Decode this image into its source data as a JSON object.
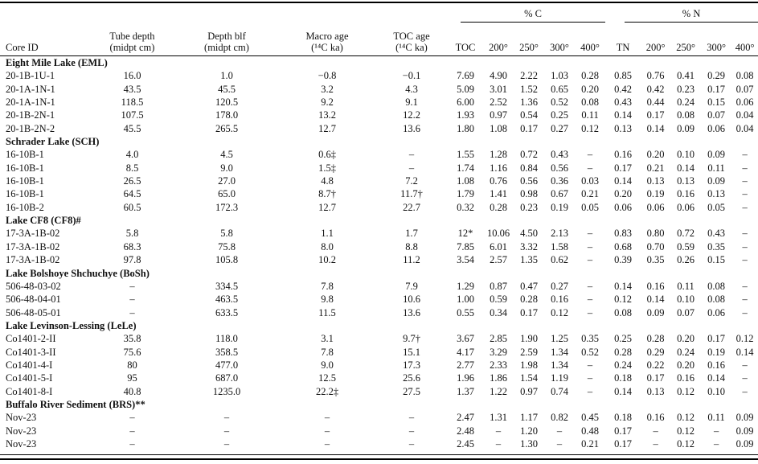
{
  "table": {
    "headers": {
      "core_id": "Core ID",
      "tube_depth": [
        "Tube depth",
        "(midpt cm)"
      ],
      "depth_blf": [
        "Depth blf",
        "(midpt cm)"
      ],
      "macro_age": [
        "Macro age",
        "(¹⁴C ka)"
      ],
      "toc_age": [
        "TOC age",
        "(¹⁴C ka)"
      ],
      "c_group": "% C",
      "n_group": "% N",
      "c_cols": [
        "TOC",
        "200°",
        "250°",
        "300°",
        "400°"
      ],
      "n_cols": [
        "TN",
        "200°",
        "250°",
        "300°",
        "400°"
      ]
    },
    "sections": [
      {
        "title": "Eight Mile Lake (EML)",
        "rows": [
          [
            "20-1B-1U-1",
            "16.0",
            "1.0",
            "−0.8",
            "−0.1",
            "7.69",
            "4.90",
            "2.22",
            "1.03",
            "0.28",
            "0.85",
            "0.76",
            "0.41",
            "0.29",
            "0.08"
          ],
          [
            "20-1A-1N-1",
            "43.5",
            "45.5",
            "3.2",
            "4.3",
            "5.09",
            "3.01",
            "1.52",
            "0.65",
            "0.20",
            "0.42",
            "0.42",
            "0.23",
            "0.17",
            "0.07"
          ],
          [
            "20-1A-1N-1",
            "118.5",
            "120.5",
            "9.2",
            "9.1",
            "6.00",
            "2.52",
            "1.36",
            "0.52",
            "0.08",
            "0.43",
            "0.44",
            "0.24",
            "0.15",
            "0.06"
          ],
          [
            "20-1B-2N-1",
            "107.5",
            "178.0",
            "13.2",
            "12.2",
            "1.93",
            "0.97",
            "0.54",
            "0.25",
            "0.11",
            "0.14",
            "0.17",
            "0.08",
            "0.07",
            "0.04"
          ],
          [
            "20-1B-2N-2",
            "45.5",
            "265.5",
            "12.7",
            "13.6",
            "1.80",
            "1.08",
            "0.17",
            "0.27",
            "0.12",
            "0.13",
            "0.14",
            "0.09",
            "0.06",
            "0.04"
          ]
        ]
      },
      {
        "title": "Schrader Lake (SCH)",
        "rows": [
          [
            "16-10B-1",
            "4.0",
            "4.5",
            "0.6‡",
            "–",
            "1.55",
            "1.28",
            "0.72",
            "0.43",
            "–",
            "0.16",
            "0.20",
            "0.10",
            "0.09",
            "–"
          ],
          [
            "16-10B-1",
            "8.5",
            "9.0",
            "1.5‡",
            "–",
            "1.74",
            "1.16",
            "0.84",
            "0.56",
            "–",
            "0.17",
            "0.21",
            "0.14",
            "0.11",
            "–"
          ],
          [
            "16-10B-1",
            "26.5",
            "27.0",
            "4.8",
            "7.2",
            "1.08",
            "0.76",
            "0.56",
            "0.36",
            "0.03",
            "0.14",
            "0.13",
            "0.13",
            "0.09",
            "–"
          ],
          [
            "16-10B-1",
            "64.5",
            "65.0",
            "8.7†",
            "11.7†",
            "1.79",
            "1.41",
            "0.98",
            "0.67",
            "0.21",
            "0.20",
            "0.19",
            "0.16",
            "0.13",
            "–"
          ],
          [
            "16-10B-2",
            "60.5",
            "172.3",
            "12.7",
            "22.7",
            "0.32",
            "0.28",
            "0.23",
            "0.19",
            "0.05",
            "0.06",
            "0.06",
            "0.06",
            "0.05",
            "–"
          ]
        ]
      },
      {
        "title": "Lake CF8 (CF8)#",
        "rows": [
          [
            "17-3A-1B-02",
            "5.8",
            "5.8",
            "1.1",
            "1.7",
            "12*",
            "10.06",
            "4.50",
            "2.13",
            "–",
            "0.83",
            "0.80",
            "0.72",
            "0.43",
            "–"
          ],
          [
            "17-3A-1B-02",
            "68.3",
            "75.8",
            "8.0",
            "8.8",
            "7.85",
            "6.01",
            "3.32",
            "1.58",
            "–",
            "0.68",
            "0.70",
            "0.59",
            "0.35",
            "–"
          ],
          [
            "17-3A-1B-02",
            "97.8",
            "105.8",
            "10.2",
            "11.2",
            "3.54",
            "2.57",
            "1.35",
            "0.62",
            "–",
            "0.39",
            "0.35",
            "0.26",
            "0.15",
            "–"
          ]
        ]
      },
      {
        "title": "Lake Bolshoye Shchuchye (BoSh)",
        "rows": [
          [
            "506-48-03-02",
            "–",
            "334.5",
            "7.8",
            "7.9",
            "1.29",
            "0.87",
            "0.47",
            "0.27",
            "–",
            "0.14",
            "0.16",
            "0.11",
            "0.08",
            "–"
          ],
          [
            "506-48-04-01",
            "–",
            "463.5",
            "9.8",
            "10.6",
            "1.00",
            "0.59",
            "0.28",
            "0.16",
            "–",
            "0.12",
            "0.14",
            "0.10",
            "0.08",
            "–"
          ],
          [
            "506-48-05-01",
            "–",
            "633.5",
            "11.5",
            "13.6",
            "0.55",
            "0.34",
            "0.17",
            "0.12",
            "–",
            "0.08",
            "0.09",
            "0.07",
            "0.06",
            "–"
          ]
        ]
      },
      {
        "title": "Lake Levinson-Lessing (LeLe)",
        "rows": [
          [
            "Co1401-2-II",
            "35.8",
            "118.0",
            "3.1",
            "9.7†",
            "3.67",
            "2.85",
            "1.90",
            "1.25",
            "0.35",
            "0.25",
            "0.28",
            "0.20",
            "0.17",
            "0.12"
          ],
          [
            "Co1401-3-II",
            "75.6",
            "358.5",
            "7.8",
            "15.1",
            "4.17",
            "3.29",
            "2.59",
            "1.34",
            "0.52",
            "0.28",
            "0.29",
            "0.24",
            "0.19",
            "0.14"
          ],
          [
            "Co1401-4-I",
            "80",
            "477.0",
            "9.0",
            "17.3",
            "2.77",
            "2.33",
            "1.98",
            "1.34",
            "–",
            "0.24",
            "0.22",
            "0.20",
            "0.16",
            "–"
          ],
          [
            "Co1401-5-I",
            "95",
            "687.0",
            "12.5",
            "25.6",
            "1.96",
            "1.86",
            "1.54",
            "1.19",
            "–",
            "0.18",
            "0.17",
            "0.16",
            "0.14",
            "–"
          ],
          [
            "Co1401-8-I",
            "40.8",
            "1235.0",
            "22.2‡",
            "27.5",
            "1.37",
            "1.22",
            "0.97",
            "0.74",
            "–",
            "0.14",
            "0.13",
            "0.12",
            "0.10",
            "–"
          ]
        ]
      },
      {
        "title": "Buffalo River Sediment (BRS)**",
        "rows": [
          [
            "Nov-23",
            "–",
            "–",
            "–",
            "–",
            "2.47",
            "1.31",
            "1.17",
            "0.82",
            "0.45",
            "0.18",
            "0.16",
            "0.12",
            "0.11",
            "0.09"
          ],
          [
            "Nov-23",
            "–",
            "–",
            "–",
            "–",
            "2.48",
            "–",
            "1.20",
            "–",
            "0.48",
            "0.17",
            "–",
            "0.12",
            "–",
            "0.09"
          ],
          [
            "Nov-23",
            "–",
            "–",
            "–",
            "–",
            "2.45",
            "–",
            "1.30",
            "–",
            "0.21",
            "0.17",
            "–",
            "0.12",
            "–",
            "0.09"
          ]
        ]
      }
    ]
  }
}
